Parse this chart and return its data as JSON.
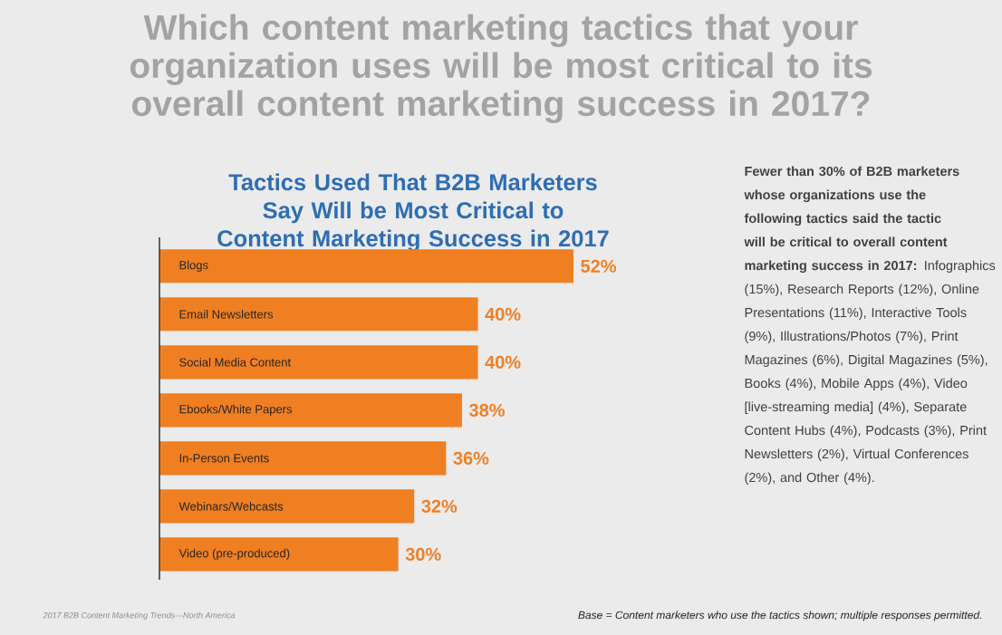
{
  "chart_data": {
    "type": "bar",
    "orientation": "horizontal",
    "title": "Which content marketing tactics that your organization uses will be most critical to its overall content marketing success in 2017?",
    "subtitle": "Tactics Used That B2B Marketers Say Will be Most Critical to Content Marketing Success in 2017",
    "categories": [
      "Blogs",
      "Email Newsletters",
      "Social Media Content",
      "Ebooks/White Papers",
      "In-Person Events",
      "Webinars/Webcasts",
      "Video (pre-produced)"
    ],
    "values": [
      52,
      40,
      40,
      38,
      36,
      32,
      30
    ],
    "value_labels": [
      "52%",
      "40%",
      "40%",
      "38%",
      "36%",
      "32%",
      "30%"
    ],
    "color": "#f07f22",
    "annotations": [
      "**Fewer than 30% of B2B marketers whose organizations use the following tactics said the tactic will be critical to overall content marketing success in 2017:** Infographics (15%), Research Reports (12%), Online Presentations (11%), Interactive Tools (9%), Illustrations/Photos (7%), Print Magazines (6%), Digital Magazines (5%), Books (4%), Mobile Apps (4%), Video [live-streaming media] (4%), Separate Content Hubs (4%), Podcasts (3%), Print Newsletters (2%), Virtual Conferences (2%), and Other (4%).",
      "2017 B2B Content Marketing Trends—North America",
      "Base = Content marketers who use the tactics shown; multiple responses permitted."
    ]
  }
}
